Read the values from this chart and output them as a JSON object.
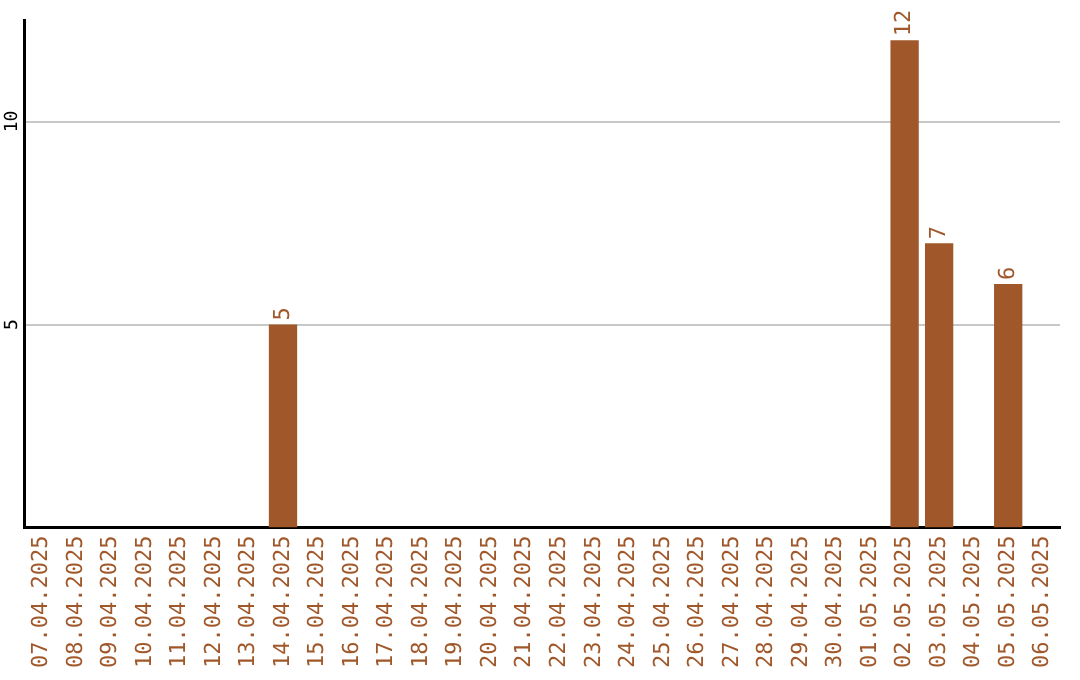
{
  "chart_data": {
    "type": "bar",
    "categories": [
      "07.04.2025",
      "08.04.2025",
      "09.04.2025",
      "10.04.2025",
      "11.04.2025",
      "12.04.2025",
      "13.04.2025",
      "14.04.2025",
      "15.04.2025",
      "16.04.2025",
      "17.04.2025",
      "18.04.2025",
      "19.04.2025",
      "20.04.2025",
      "21.04.2025",
      "22.04.2025",
      "23.04.2025",
      "24.04.2025",
      "25.04.2025",
      "26.04.2025",
      "27.04.2025",
      "28.04.2025",
      "29.04.2025",
      "30.04.2025",
      "01.05.2025",
      "02.05.2025",
      "03.05.2025",
      "04.05.2025",
      "05.05.2025",
      "06.05.2025"
    ],
    "values": [
      null,
      null,
      null,
      null,
      null,
      null,
      null,
      5,
      null,
      null,
      null,
      null,
      null,
      null,
      null,
      null,
      null,
      null,
      null,
      null,
      null,
      null,
      null,
      null,
      null,
      12,
      7,
      null,
      6,
      null
    ],
    "color": "#a0582a",
    "data_labels": true,
    "ylim": [
      0,
      12.5
    ],
    "yticks": [
      5,
      10
    ],
    "grid": "y",
    "legend": false
  }
}
